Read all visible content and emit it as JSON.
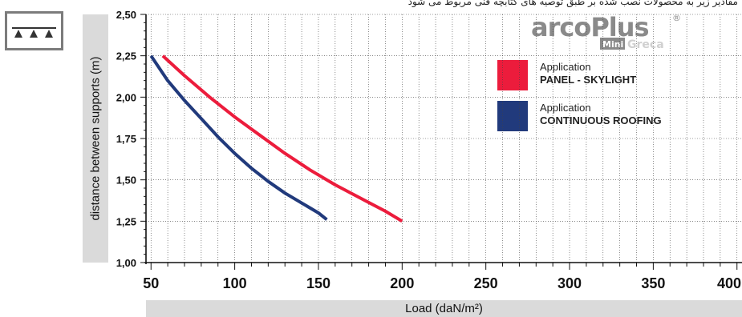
{
  "header_note": "مقادیر زیر به محصولات نصب شده بر طبق توصیه های کتابچه فنی مربوط می شود",
  "logo": {
    "brand": "arcoPlus",
    "registered": "®",
    "sub_mini": "Mini",
    "sub_greca": "Greca",
    "color_primary": "#8a8a8a"
  },
  "icon": {
    "name": "roof-supports-icon"
  },
  "colors": {
    "panel": "#ec1c3c",
    "continuous": "#213a7c",
    "band": "#dadada",
    "grid": "#111111"
  },
  "legend": [
    {
      "small": "Application",
      "big": "PANEL - SKYLIGHT",
      "color": "#ec1c3c"
    },
    {
      "small": "Application",
      "big": "CONTINUOUS ROOFING",
      "color": "#213a7c"
    }
  ],
  "chart_data": {
    "type": "line",
    "xlabel": "Load (daN/m²)",
    "ylabel": "distance between supports (m)",
    "xlim": [
      47,
      403
    ],
    "ylim": [
      1.0,
      2.5
    ],
    "x_ticks": [
      "50",
      "100",
      "150",
      "200",
      "250",
      "300",
      "350",
      "400"
    ],
    "y_ticks": [
      "1,00",
      "1,25",
      "1,50",
      "1,75",
      "2,00",
      "2,25",
      "2,50"
    ],
    "grid": true,
    "series": [
      {
        "name": "PANEL - SKYLIGHT",
        "color": "#ec1c3c",
        "x": [
          57,
          70,
          85,
          100,
          115,
          130,
          145,
          160,
          175,
          190,
          200
        ],
        "y": [
          2.25,
          2.13,
          2.0,
          1.88,
          1.77,
          1.66,
          1.56,
          1.47,
          1.39,
          1.31,
          1.25
        ]
      },
      {
        "name": "CONTINUOUS ROOFING",
        "color": "#213a7c",
        "x": [
          50,
          60,
          70,
          80,
          90,
          100,
          110,
          120,
          130,
          140,
          150,
          155
        ],
        "y": [
          2.25,
          2.1,
          1.98,
          1.87,
          1.76,
          1.66,
          1.57,
          1.49,
          1.42,
          1.36,
          1.3,
          1.26
        ]
      }
    ]
  }
}
